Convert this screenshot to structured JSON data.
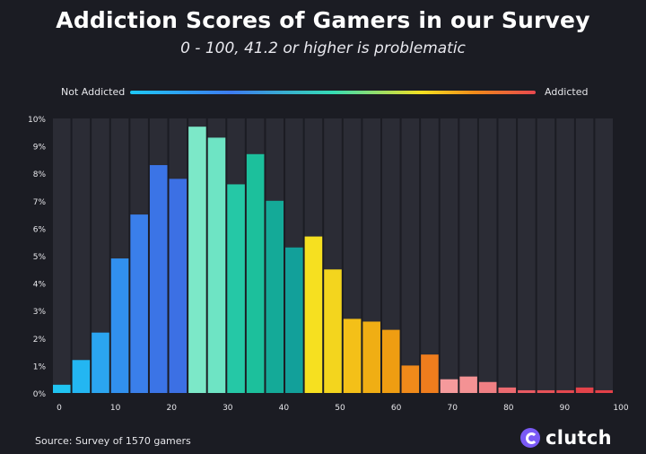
{
  "header": {
    "title": "Addiction Scores of Gamers in our Survey",
    "subtitle": "0 - 100, 41.2 or higher is problematic"
  },
  "legend": {
    "left_label": "Not Addicted",
    "right_label": "Addicted",
    "gradient_colors": [
      "#1ec8f5",
      "#3d7cf0",
      "#35dcb4",
      "#f6e020",
      "#f08a1a",
      "#e8484f"
    ]
  },
  "footer": {
    "source": "Source: Survey of 1570 gamers",
    "brand": "clutch",
    "brand_icon": "clutch-logo-icon"
  },
  "chart_data": {
    "type": "bar",
    "title": "Addiction Scores of Gamers in our Survey",
    "subtitle": "0 - 100, 41.2 or higher is problematic",
    "xlabel": "",
    "ylabel": "",
    "xlim": [
      0,
      100
    ],
    "ylim": [
      0,
      10
    ],
    "x_ticks": [
      0,
      10,
      20,
      30,
      40,
      50,
      60,
      70,
      80,
      90,
      100
    ],
    "y_ticks": [
      "0%",
      "1%",
      "2%",
      "3%",
      "4%",
      "5%",
      "6%",
      "7%",
      "8%",
      "9%",
      "10%"
    ],
    "bins": [
      0,
      3.5,
      7,
      10.5,
      14,
      17.5,
      21,
      24.5,
      28,
      31.5,
      35,
      38.5,
      42,
      45.5,
      49,
      52.5,
      56,
      59.5,
      63,
      66.5,
      70,
      73.5,
      77,
      80.5,
      84,
      87.5,
      91,
      94.5,
      98
    ],
    "values": [
      0.3,
      1.2,
      2.2,
      4.9,
      6.5,
      8.3,
      7.8,
      9.7,
      9.3,
      7.6,
      8.7,
      7.0,
      5.3,
      5.7,
      4.5,
      2.7,
      2.6,
      2.3,
      1.0,
      1.4,
      0.5,
      0.6,
      0.4,
      0.2,
      0.1,
      0.1,
      0.1,
      0.2,
      0.1
    ],
    "colors": [
      "#20c4f2",
      "#23b6f2",
      "#2ba5f0",
      "#3190ee",
      "#3a7fea",
      "#3b74e6",
      "#3c70e4",
      "#7ce8c8",
      "#6ee4c4",
      "#25c8a6",
      "#1cc09c",
      "#14aa98",
      "#12a09a",
      "#f6e020",
      "#f3d51e",
      "#f4c018",
      "#f0ae14",
      "#ef9d12",
      "#f08a1a",
      "#ef7d1d",
      "#f59a9c",
      "#f49294",
      "#ef7f83",
      "#eb6a70",
      "#e85a62",
      "#e65258",
      "#e4484f",
      "#e3434a",
      "#e34048"
    ],
    "legend": [
      "Not Addicted",
      "Addicted"
    ],
    "source": "Source: Survey of 1570 gamers"
  }
}
